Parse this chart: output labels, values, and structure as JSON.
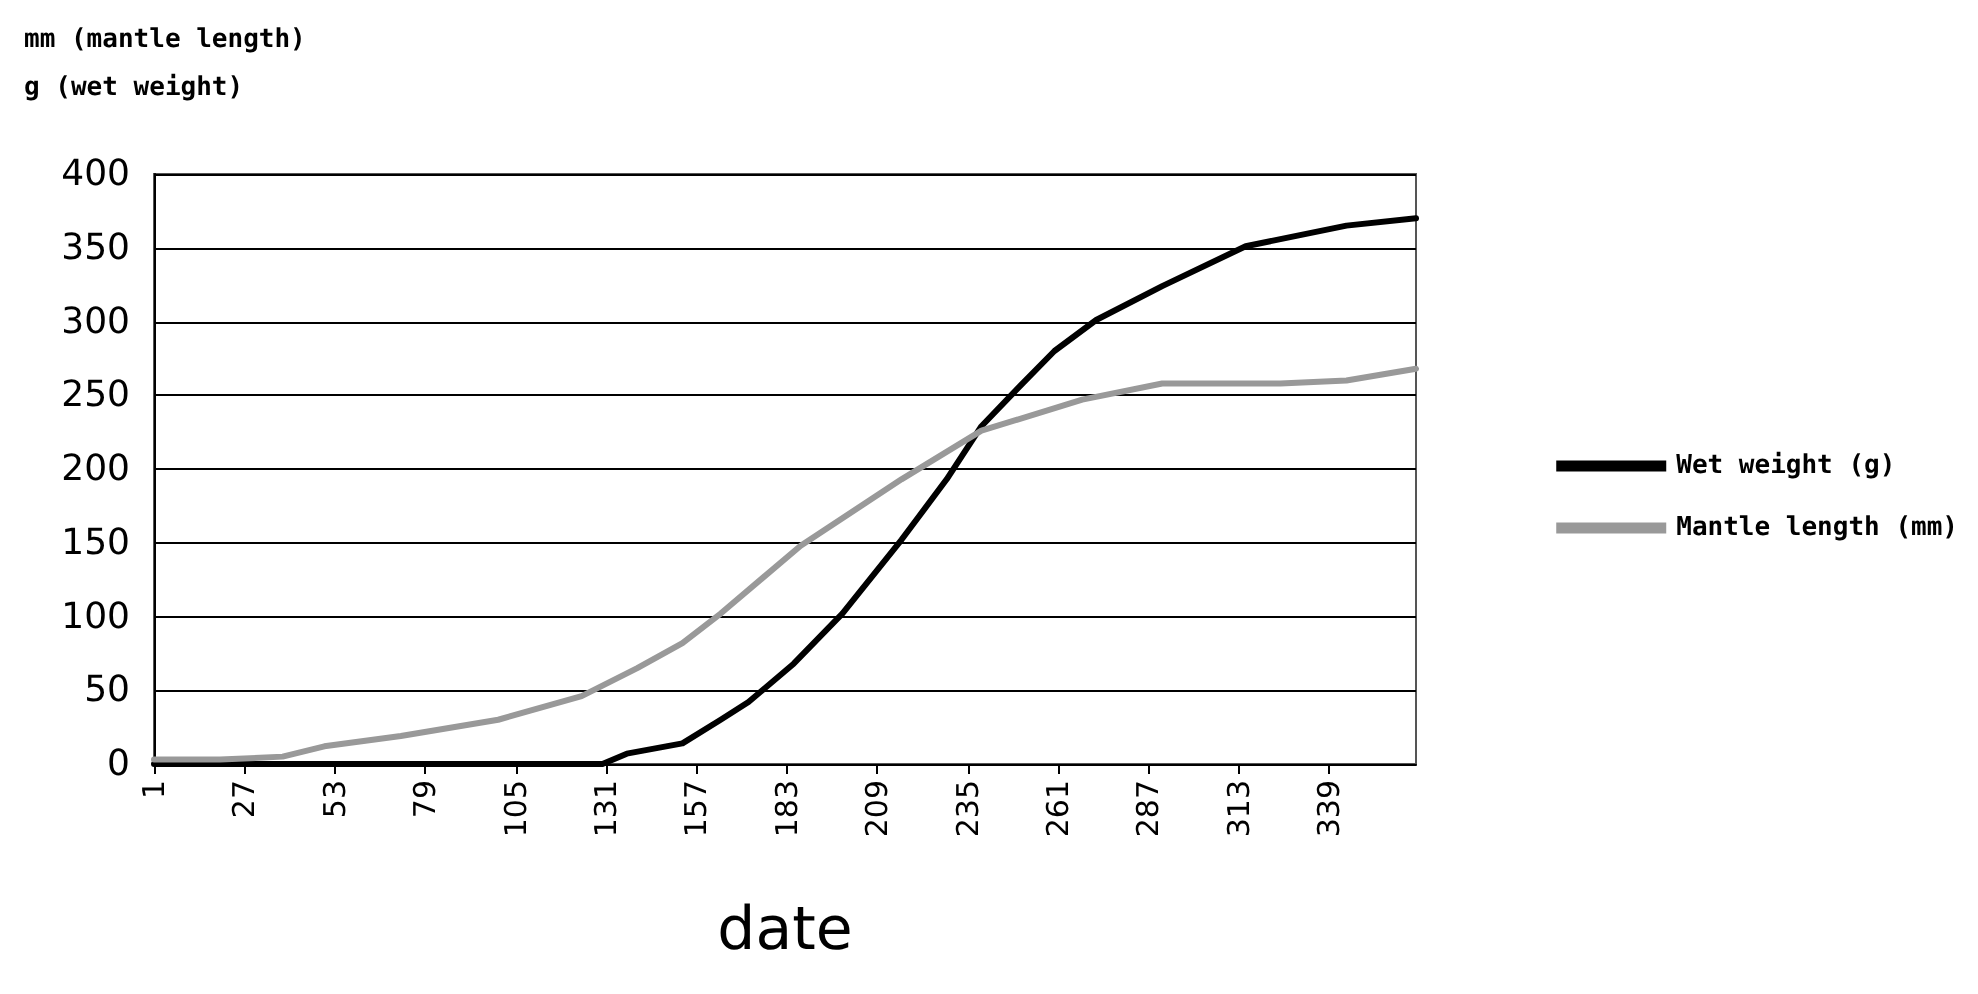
{
  "chart_data": {
    "type": "line",
    "xlabel": "date",
    "ylabel": "mm (mantle length)\ng (wet weight)",
    "xlim": [
      1,
      364
    ],
    "xticks": [
      1,
      27,
      53,
      79,
      105,
      131,
      157,
      183,
      209,
      235,
      261,
      287,
      313,
      339
    ],
    "ylim": [
      0,
      400
    ],
    "yticks": [
      0,
      50,
      100,
      150,
      200,
      250,
      300,
      350,
      400
    ],
    "grid": "y",
    "legend": "right",
    "marker": "none",
    "line_style": "solid",
    "series": [
      {
        "name": "Wet weight (g)",
        "color": "#000000",
        "x": [
          1,
          60,
          110,
          130,
          137,
          153,
          164,
          172,
          185,
          199,
          216,
          229,
          239,
          250,
          260,
          272,
          291,
          315,
          344,
          364
        ],
        "values": [
          0,
          0,
          0,
          0,
          7,
          14,
          30,
          42,
          68,
          102,
          152,
          193,
          229,
          256,
          280,
          301,
          324,
          351,
          365,
          370
        ]
      },
      {
        "name": "Mantle length (mm)",
        "color": "#999999",
        "x": [
          1,
          20,
          38,
          50,
          72,
          100,
          124,
          140,
          153,
          164,
          187,
          216,
          239,
          268,
          291,
          325,
          344,
          364
        ],
        "values": [
          3,
          3,
          5,
          12,
          19,
          30,
          46,
          65,
          82,
          102,
          148,
          193,
          226,
          247,
          258,
          258,
          260,
          268
        ]
      }
    ]
  }
}
